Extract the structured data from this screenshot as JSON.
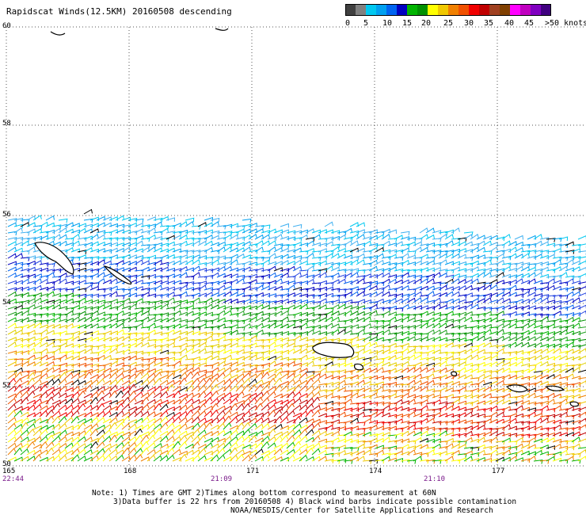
{
  "title": "Rapidscat Winds(12.5KM) 20160508 descending",
  "colorbar": {
    "colors": [
      "#404040",
      "#808080",
      "#00c8f0",
      "#00a0f0",
      "#0064f0",
      "#0000c0",
      "#00b400",
      "#009000",
      "#ffff00",
      "#f0c800",
      "#f08000",
      "#f05000",
      "#f00000",
      "#c00000",
      "#a04020",
      "#804000",
      "#ff00ff",
      "#c000c0",
      "#8000c0",
      "#400080"
    ],
    "labels": [
      "0",
      "5",
      "10",
      "15",
      "20",
      "25",
      "30",
      "35",
      "40",
      "45",
      ">50 knots"
    ]
  },
  "lat_labels": [
    "60",
    "58",
    "56",
    "54",
    "52",
    "50"
  ],
  "lon_labels": [
    "165",
    "168",
    "171",
    "174",
    "177"
  ],
  "time_labels": [
    "22:44",
    "21:09",
    "21:10"
  ],
  "notes": [
    "Note: 1) Times are GMT 2)Times along bottom correspond to measurement at 60N",
    "3)Data buffer is 22 hrs from 20160508 4) Black wind barbs indicate possible contamination",
    "NOAA/NESDIS/Center for Satellite Applications and Research"
  ]
}
